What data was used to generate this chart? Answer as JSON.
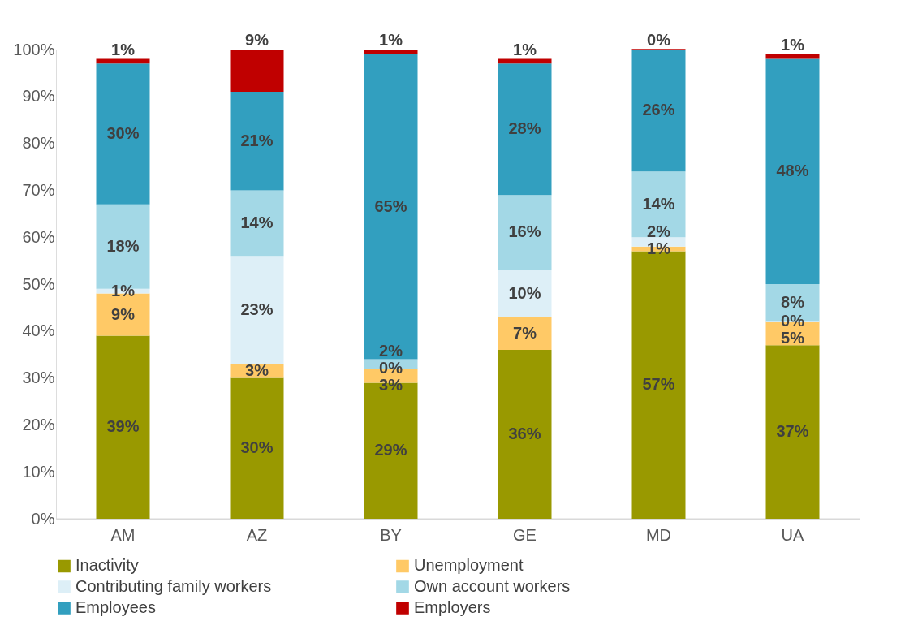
{
  "chart_data": {
    "type": "bar",
    "stacked": true,
    "grid": false,
    "legend": "bottom",
    "categories": [
      "AM",
      "AZ",
      "BY",
      "GE",
      "MD",
      "UA"
    ],
    "ylim": [
      0,
      100
    ],
    "yticks": [
      {
        "value": 0,
        "label": "0%"
      },
      {
        "value": 10,
        "label": "10%"
      },
      {
        "value": 20,
        "label": "20%"
      },
      {
        "value": 30,
        "label": "30%"
      },
      {
        "value": 40,
        "label": "40%"
      },
      {
        "value": 50,
        "label": "50%"
      },
      {
        "value": 60,
        "label": "60%"
      },
      {
        "value": 70,
        "label": "70%"
      },
      {
        "value": 80,
        "label": "80%"
      },
      {
        "value": 90,
        "label": "90%"
      },
      {
        "value": 100,
        "label": "100%"
      }
    ],
    "series": [
      {
        "name": "Inactivity",
        "color": "#999900",
        "values": [
          39,
          30,
          29,
          36,
          57,
          37
        ],
        "value_labels": [
          "39%",
          "30%",
          "29%",
          "36%",
          "57%",
          "37%"
        ]
      },
      {
        "name": "Unemployment",
        "color": "#ffc966",
        "values": [
          9,
          3,
          3,
          7,
          1,
          5
        ],
        "value_labels": [
          "9%",
          "3%",
          "3%",
          "7%",
          "1%",
          "5%"
        ]
      },
      {
        "name": "Contributing family workers",
        "color": "#ddeff7",
        "values": [
          1,
          23,
          0,
          10,
          2,
          0
        ],
        "value_labels": [
          "1%",
          "23%",
          "0%",
          "10%",
          "2%",
          "0%"
        ]
      },
      {
        "name": "Own account workers",
        "color": "#a3d8e6",
        "values": [
          18,
          14,
          2,
          16,
          14,
          8
        ],
        "value_labels": [
          "18%",
          "14%",
          "2%",
          "16%",
          "14%",
          "8%"
        ]
      },
      {
        "name": "Employees",
        "color": "#329fbf",
        "values": [
          30,
          21,
          65,
          28,
          26,
          48
        ],
        "value_labels": [
          "30%",
          "21%",
          "65%",
          "28%",
          "26%",
          "48%"
        ]
      },
      {
        "name": "Employers",
        "color": "#c00000",
        "values": [
          1,
          9,
          1,
          1,
          0,
          1
        ],
        "value_labels": [
          "1%",
          "9%",
          "1%",
          "1%",
          "0%",
          "1%"
        ]
      }
    ]
  }
}
